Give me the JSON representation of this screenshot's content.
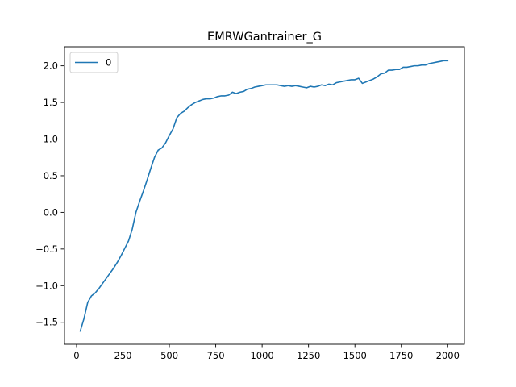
{
  "chart_data": {
    "type": "line",
    "title": "EMRWGantrainer_G",
    "xlabel": "",
    "ylabel": "",
    "xlim": [
      -65,
      2090
    ],
    "ylim": [
      -1.8,
      2.26
    ],
    "xticks": [
      0,
      250,
      500,
      750,
      1000,
      1250,
      1500,
      1750,
      2000
    ],
    "xtick_labels": [
      "0",
      "250",
      "500",
      "750",
      "1000",
      "1250",
      "1500",
      "1750",
      "2000"
    ],
    "yticks": [
      -1.5,
      -1.0,
      -0.5,
      0.0,
      0.5,
      1.0,
      1.5,
      2.0
    ],
    "ytick_labels": [
      "−1.5",
      "−1.0",
      "−0.5",
      "0.0",
      "0.5",
      "1.0",
      "1.5",
      "2.0"
    ],
    "grid": false,
    "legend": {
      "position": "top-left"
    },
    "series": [
      {
        "name": "0",
        "color": "#1f77b4",
        "x": [
          20,
          40,
          60,
          80,
          100,
          120,
          140,
          160,
          180,
          200,
          220,
          240,
          260,
          280,
          300,
          320,
          340,
          360,
          380,
          400,
          420,
          440,
          460,
          480,
          500,
          520,
          540,
          560,
          580,
          600,
          620,
          640,
          660,
          680,
          700,
          720,
          740,
          760,
          780,
          800,
          820,
          840,
          860,
          880,
          900,
          920,
          940,
          960,
          980,
          1000,
          1020,
          1040,
          1060,
          1080,
          1100,
          1120,
          1140,
          1160,
          1180,
          1200,
          1220,
          1240,
          1260,
          1280,
          1300,
          1320,
          1340,
          1360,
          1380,
          1400,
          1420,
          1440,
          1460,
          1480,
          1500,
          1520,
          1540,
          1560,
          1580,
          1600,
          1620,
          1640,
          1660,
          1680,
          1700,
          1720,
          1740,
          1760,
          1780,
          1800,
          1820,
          1840,
          1860,
          1880,
          1900,
          1920,
          1940,
          1960,
          1980,
          2000
        ],
        "values": [
          -1.62,
          -1.45,
          -1.23,
          -1.14,
          -1.1,
          -1.04,
          -0.97,
          -0.9,
          -0.83,
          -0.76,
          -0.68,
          -0.59,
          -0.49,
          -0.39,
          -0.23,
          0.0,
          0.15,
          0.29,
          0.44,
          0.6,
          0.75,
          0.85,
          0.88,
          0.95,
          1.05,
          1.14,
          1.29,
          1.35,
          1.38,
          1.43,
          1.47,
          1.5,
          1.52,
          1.54,
          1.55,
          1.55,
          1.56,
          1.58,
          1.59,
          1.59,
          1.6,
          1.64,
          1.62,
          1.64,
          1.65,
          1.68,
          1.69,
          1.71,
          1.72,
          1.73,
          1.74,
          1.74,
          1.74,
          1.74,
          1.73,
          1.72,
          1.73,
          1.72,
          1.73,
          1.72,
          1.71,
          1.7,
          1.72,
          1.71,
          1.72,
          1.74,
          1.73,
          1.75,
          1.74,
          1.77,
          1.78,
          1.79,
          1.8,
          1.81,
          1.81,
          1.83,
          1.76,
          1.78,
          1.8,
          1.82,
          1.85,
          1.89,
          1.9,
          1.94,
          1.94,
          1.95,
          1.95,
          1.98,
          1.98,
          1.99,
          2.0,
          2.0,
          2.01,
          2.01,
          2.03,
          2.04,
          2.05,
          2.06,
          2.07,
          2.07
        ]
      }
    ]
  }
}
